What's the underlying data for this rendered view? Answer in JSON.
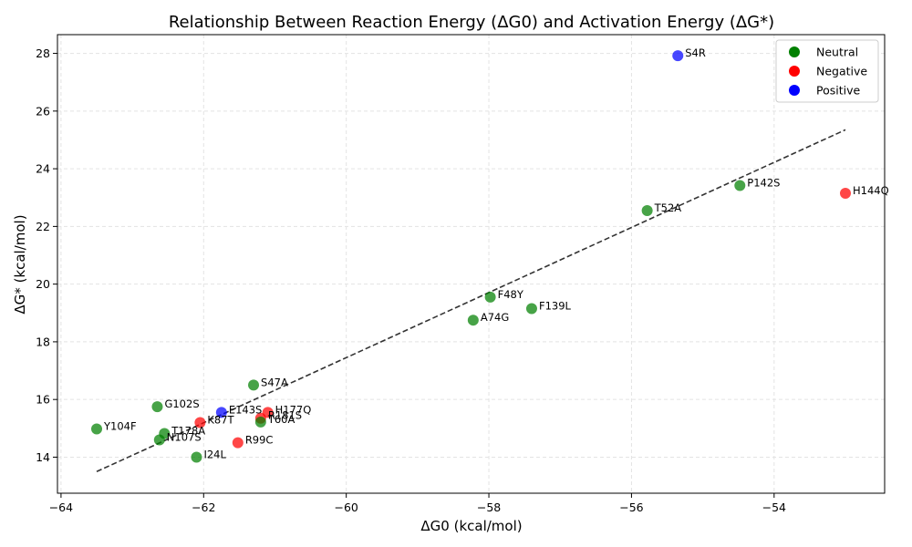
{
  "chart_data": {
    "type": "scatter",
    "title": "Relationship Between Reaction Energy (ΔG0) and Activation Energy (ΔG*)",
    "xlabel": "ΔG0 (kcal/mol)",
    "ylabel": "ΔG* (kcal/mol)",
    "xlim": [
      -64.05,
      -52.45
    ],
    "ylim": [
      12.75,
      28.65
    ],
    "xticks": [
      -64,
      -62,
      -60,
      -58,
      -56,
      -54
    ],
    "yticks": [
      14,
      16,
      18,
      20,
      22,
      24,
      26,
      28
    ],
    "grid": true,
    "legend_position": "top-right",
    "legend": [
      {
        "label": "Neutral",
        "color": "#008000"
      },
      {
        "label": "Negative",
        "color": "#ff0000"
      },
      {
        "label": "Positive",
        "color": "#0000ff"
      }
    ],
    "trendline": {
      "x": [
        -63.5,
        -53.0
      ],
      "y": [
        13.5,
        25.35
      ],
      "style": "dashed",
      "color": "#333333"
    },
    "points": [
      {
        "label": "S4R",
        "x": -55.35,
        "y": 27.92,
        "charge": "Positive"
      },
      {
        "label": "P142S",
        "x": -54.48,
        "y": 23.42,
        "charge": "Neutral"
      },
      {
        "label": "H144Q",
        "x": -53.0,
        "y": 23.15,
        "charge": "Negative"
      },
      {
        "label": "T52A",
        "x": -55.78,
        "y": 22.55,
        "charge": "Neutral"
      },
      {
        "label": "F48Y",
        "x": -57.98,
        "y": 19.55,
        "charge": "Neutral"
      },
      {
        "label": "F139L",
        "x": -57.4,
        "y": 19.15,
        "charge": "Neutral"
      },
      {
        "label": "A74G",
        "x": -58.22,
        "y": 18.75,
        "charge": "Neutral"
      },
      {
        "label": "S47A",
        "x": -61.3,
        "y": 16.5,
        "charge": "Neutral"
      },
      {
        "label": "G102S",
        "x": -62.65,
        "y": 15.75,
        "charge": "Neutral"
      },
      {
        "label": "E143S",
        "x": -61.75,
        "y": 15.55,
        "charge": "Positive"
      },
      {
        "label": "H177Q",
        "x": -61.1,
        "y": 15.55,
        "charge": "Negative"
      },
      {
        "label": "R181S",
        "x": -61.2,
        "y": 15.35,
        "charge": "Negative"
      },
      {
        "label": "T60A",
        "x": -61.2,
        "y": 15.22,
        "charge": "Neutral"
      },
      {
        "label": "K87T",
        "x": -62.05,
        "y": 15.2,
        "charge": "Negative"
      },
      {
        "label": "Y104F",
        "x": -63.5,
        "y": 14.98,
        "charge": "Neutral"
      },
      {
        "label": "T178A",
        "x": -62.55,
        "y": 14.82,
        "charge": "Neutral"
      },
      {
        "label": "N107S",
        "x": -62.62,
        "y": 14.6,
        "charge": "Neutral"
      },
      {
        "label": "R99C",
        "x": -61.52,
        "y": 14.5,
        "charge": "Negative"
      },
      {
        "label": "I24L",
        "x": -62.1,
        "y": 14.0,
        "charge": "Neutral"
      }
    ]
  }
}
